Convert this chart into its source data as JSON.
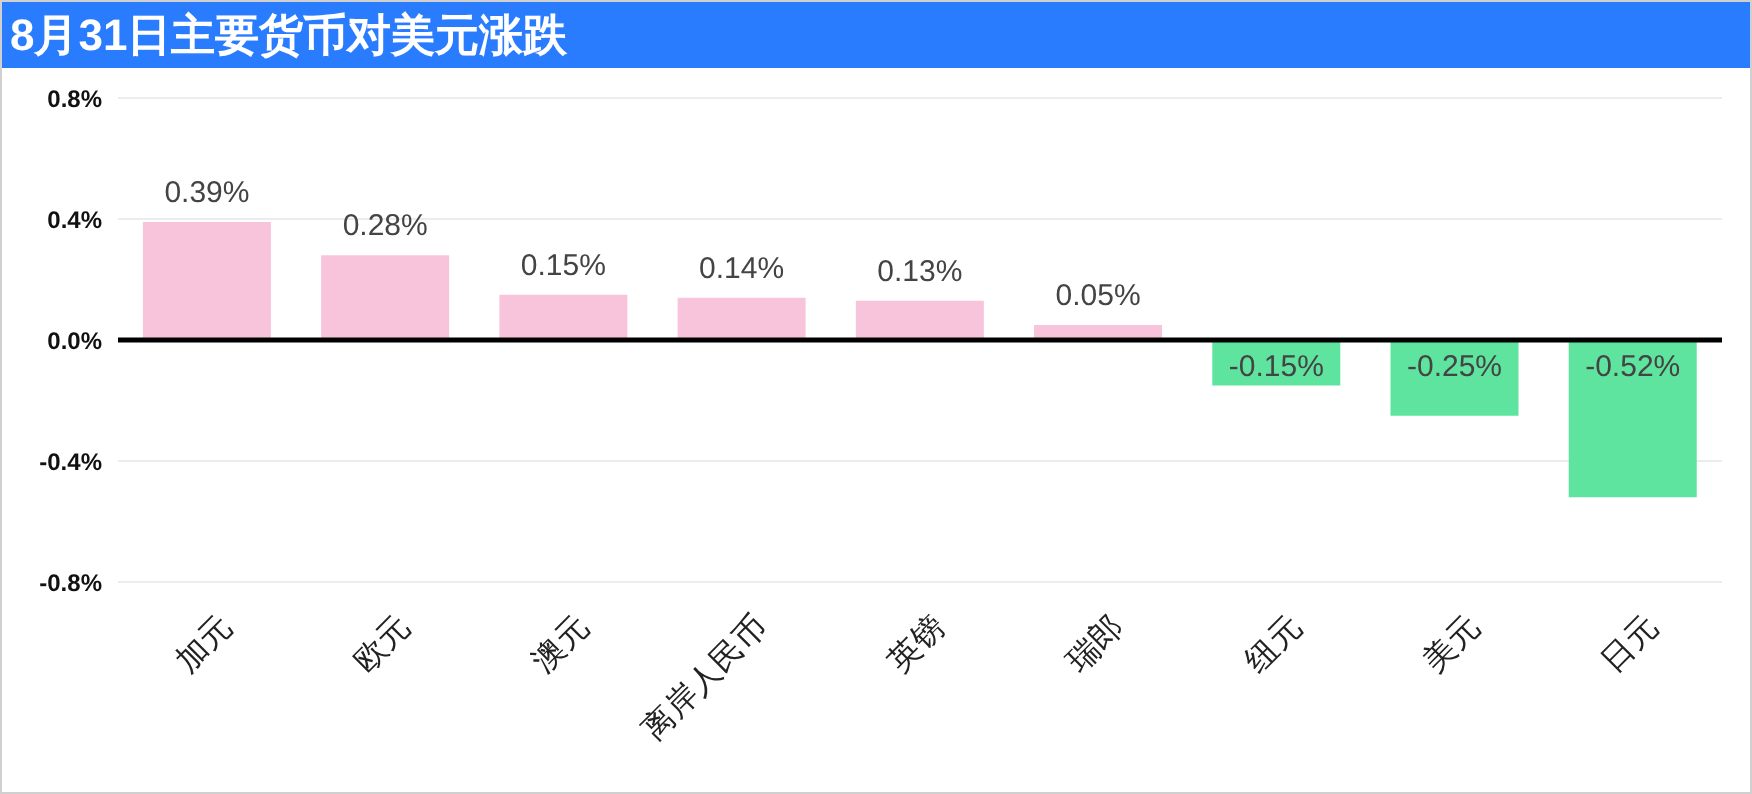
{
  "chart_data": {
    "type": "bar",
    "title": "8月31日主要货币对美元涨跌",
    "categories": [
      "加元",
      "欧元",
      "澳元",
      "离岸人民币",
      "英镑",
      "瑞郎",
      "纽元",
      "美元",
      "日元"
    ],
    "values": [
      0.39,
      0.28,
      0.15,
      0.14,
      0.13,
      0.05,
      -0.15,
      -0.25,
      -0.52
    ],
    "colors": [
      "#f8c4dc",
      "#f8c4dc",
      "#f8c4dc",
      "#f8c4dc",
      "#f8c4dc",
      "#f8c4dc",
      "#5ee49e",
      "#5ee49e",
      "#5ee49e"
    ],
    "value_labels": [
      "0.39%",
      "0.28%",
      "0.15%",
      "0.14%",
      "0.13%",
      "0.05%",
      "-0.15%",
      "-0.25%",
      "-0.52%"
    ],
    "ylim": [
      -0.8,
      0.8
    ],
    "yticks": [
      {
        "value": -0.8,
        "label": "-0.8%"
      },
      {
        "value": -0.4,
        "label": "-0.4%"
      },
      {
        "value": 0.0,
        "label": "0.0%"
      },
      {
        "value": 0.4,
        "label": "0.4%"
      },
      {
        "value": 0.8,
        "label": "0.8%"
      }
    ],
    "grid": "y",
    "legend": false
  }
}
